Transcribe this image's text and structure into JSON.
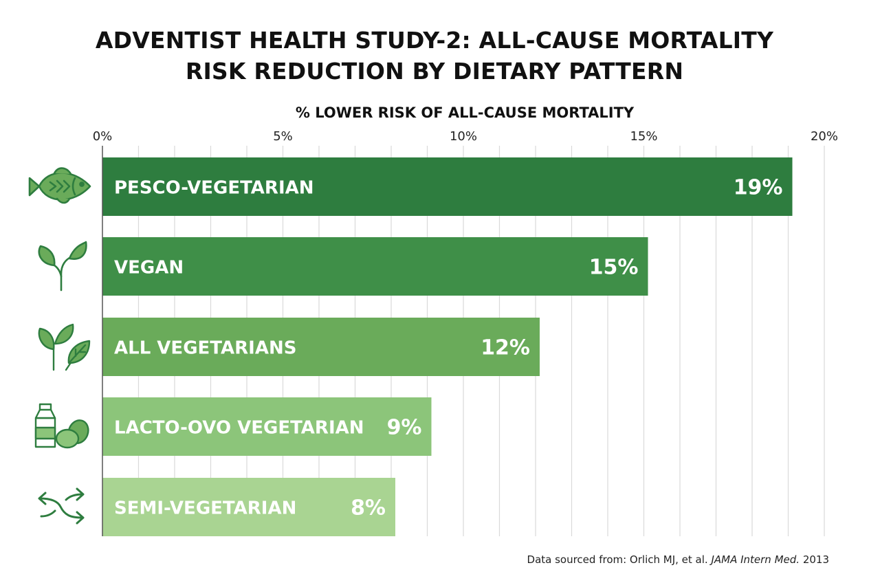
{
  "title_lines": [
    "ADVENTIST HEALTH STUDY-2: ALL-CAUSE MORTALITY",
    "RISK REDUCTION BY DIETARY PATTERN"
  ],
  "source": {
    "prefix": "Data sourced from: Orlich MJ, et al. ",
    "journal": "JAMA Intern Med.",
    "year": " 2013"
  },
  "colors": {
    "bars": [
      "#2e7d3f",
      "#3f8f48",
      "#6aab5a",
      "#8cc57a",
      "#a9d492"
    ],
    "icon": "#2e7d3f",
    "grid": "#d9d9d9",
    "axis": "#555555"
  },
  "chart_data": {
    "type": "bar",
    "orientation": "horizontal",
    "title": "ADVENTIST HEALTH STUDY-2: ALL-CAUSE MORTALITY RISK REDUCTION BY DIETARY PATTERN",
    "xlabel": "% LOWER RISK OF ALL-CAUSE MORTALITY",
    "ylabel": "",
    "xlim": [
      0,
      20
    ],
    "x_ticks": [
      0,
      5,
      10,
      15,
      20
    ],
    "x_tick_labels": [
      "0%",
      "5%",
      "10%",
      "15%",
      "20%"
    ],
    "minor_gridline_step": 1,
    "grid": true,
    "categories": [
      "PESCO-VEGETARIAN",
      "VEGAN",
      "ALL VEGETARIANS",
      "LACTO-OVO VEGETARIAN",
      "SEMI-VEGETARIAN"
    ],
    "values": [
      19,
      15,
      12,
      9,
      8
    ],
    "value_labels": [
      "19%",
      "15%",
      "12%",
      "9%",
      "8%"
    ],
    "icons": [
      "fish-icon",
      "sprout-icon",
      "leaves-icon",
      "milk-eggs-icon",
      "shuffle-arrows-icon"
    ]
  }
}
